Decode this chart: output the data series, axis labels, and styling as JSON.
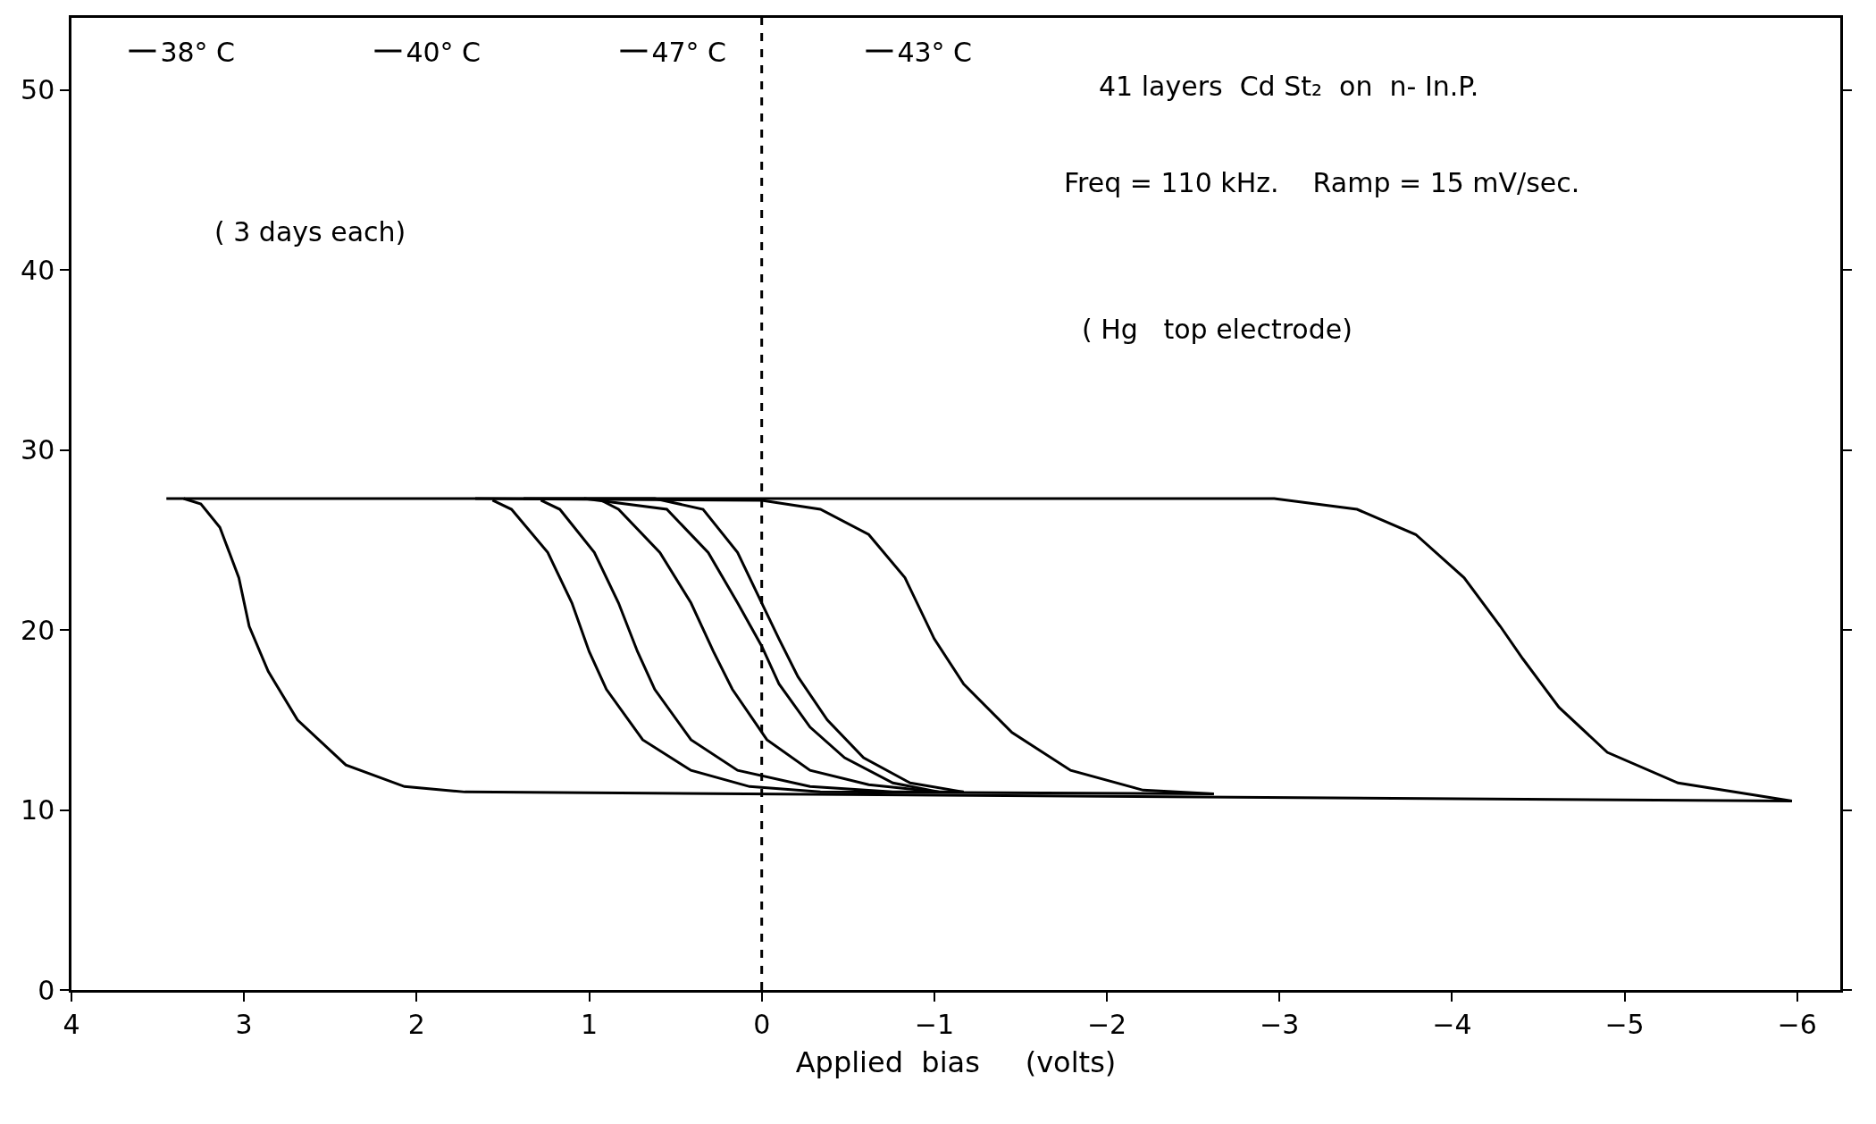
{
  "chart_data": {
    "type": "line",
    "xlabel": "Applied  bias     (volts)",
    "xlim": [
      4,
      -6.25
    ],
    "xticks": [
      4,
      3,
      2,
      1,
      0,
      {
        "value": -1,
        "label": "−1"
      },
      {
        "value": -2,
        "label": "−2"
      },
      {
        "value": -3,
        "label": "−3"
      },
      {
        "value": -4,
        "label": "−4"
      },
      {
        "value": -5,
        "label": "−5"
      },
      {
        "value": -6,
        "label": "−6"
      }
    ],
    "ylim": [
      0,
      54
    ],
    "yticks": [
      0,
      10,
      20,
      30,
      40,
      50
    ],
    "legend": "top left",
    "marker": "none",
    "line_style": "solid",
    "ref_lines": [
      {
        "axis": "x",
        "value": 0,
        "label": null,
        "color": "#000000",
        "line_style": "dashed"
      }
    ],
    "annotations": [
      "41 layers  Cd St₂  on  n- In.P.",
      "Freq = 110 kHz.    Ramp = 15 mV/sec.",
      "( Hg   top electrode)",
      "( 3 days each)"
    ],
    "series": [
      {
        "name": "38° C",
        "color": "#000000",
        "x": [
          3.45,
          -2.97,
          -3.45,
          -3.79,
          -4.07,
          -4.28,
          -4.41,
          -4.62,
          -4.9,
          -5.31,
          -5.97
        ],
        "values": [
          27.3,
          27.3,
          26.7,
          25.3,
          22.9,
          20.2,
          18.4,
          15.7,
          13.2,
          11.5,
          10.5
        ]
      },
      {
        "color": "#000000",
        "x": [
          -5.97,
          1.72,
          2.07,
          2.41,
          2.69,
          2.86,
          2.97,
          3.03,
          3.14,
          3.25,
          3.35
        ],
        "values": [
          10.5,
          11.0,
          11.3,
          12.5,
          15.0,
          17.7,
          20.2,
          22.9,
          25.7,
          27.0,
          27.3
        ]
      },
      {
        "name": "40° C",
        "color": "#000000",
        "x": [
          1.66,
          0.0,
          -0.34,
          -0.62,
          -0.83,
          -1.0,
          -1.17,
          -1.45,
          -1.79,
          -2.21,
          -2.62
        ],
        "values": [
          27.3,
          27.2,
          26.7,
          25.3,
          22.9,
          19.5,
          17.0,
          14.3,
          12.2,
          11.1,
          10.9
        ]
      },
      {
        "color": "#000000",
        "x": [
          -2.62,
          -0.34,
          0.07,
          0.41,
          0.69,
          0.9,
          1.0,
          1.1,
          1.24,
          1.45,
          1.56
        ],
        "values": [
          10.9,
          11.0,
          11.3,
          12.2,
          13.9,
          16.7,
          18.8,
          21.5,
          24.3,
          26.7,
          27.2
        ]
      },
      {
        "name": "47° C",
        "color": "#000000",
        "x": [
          1.03,
          0.55,
          0.31,
          0.14,
          0.0,
          -0.1,
          -0.28,
          -0.48,
          -0.76,
          -1.03
        ],
        "values": [
          27.3,
          26.7,
          24.3,
          21.5,
          19.1,
          17.0,
          14.6,
          12.9,
          11.5,
          11.0
        ]
      },
      {
        "color": "#000000",
        "x": [
          -1.03,
          -0.62,
          -0.28,
          -0.03,
          0.17,
          0.28,
          0.41,
          0.59,
          0.83,
          0.93
        ],
        "values": [
          11.0,
          11.4,
          12.2,
          13.9,
          16.7,
          18.8,
          21.5,
          24.3,
          26.7,
          27.2
        ]
      },
      {
        "name": "43° C",
        "color": "#000000",
        "x": [
          1.38,
          0.62,
          0.34,
          0.14,
          0.0,
          -0.1,
          -0.21,
          -0.38,
          -0.59,
          -0.86,
          -1.17
        ],
        "values": [
          27.3,
          27.3,
          26.7,
          24.3,
          21.5,
          19.5,
          17.4,
          15.0,
          12.9,
          11.5,
          11.0
        ]
      },
      {
        "color": "#000000",
        "x": [
          -1.17,
          -0.76,
          -0.28,
          0.14,
          0.41,
          0.62,
          0.72,
          0.83,
          0.97,
          1.17,
          1.28
        ],
        "values": [
          11.0,
          11.0,
          11.3,
          12.2,
          13.9,
          16.7,
          18.8,
          21.5,
          24.3,
          26.7,
          27.2
        ]
      }
    ]
  }
}
